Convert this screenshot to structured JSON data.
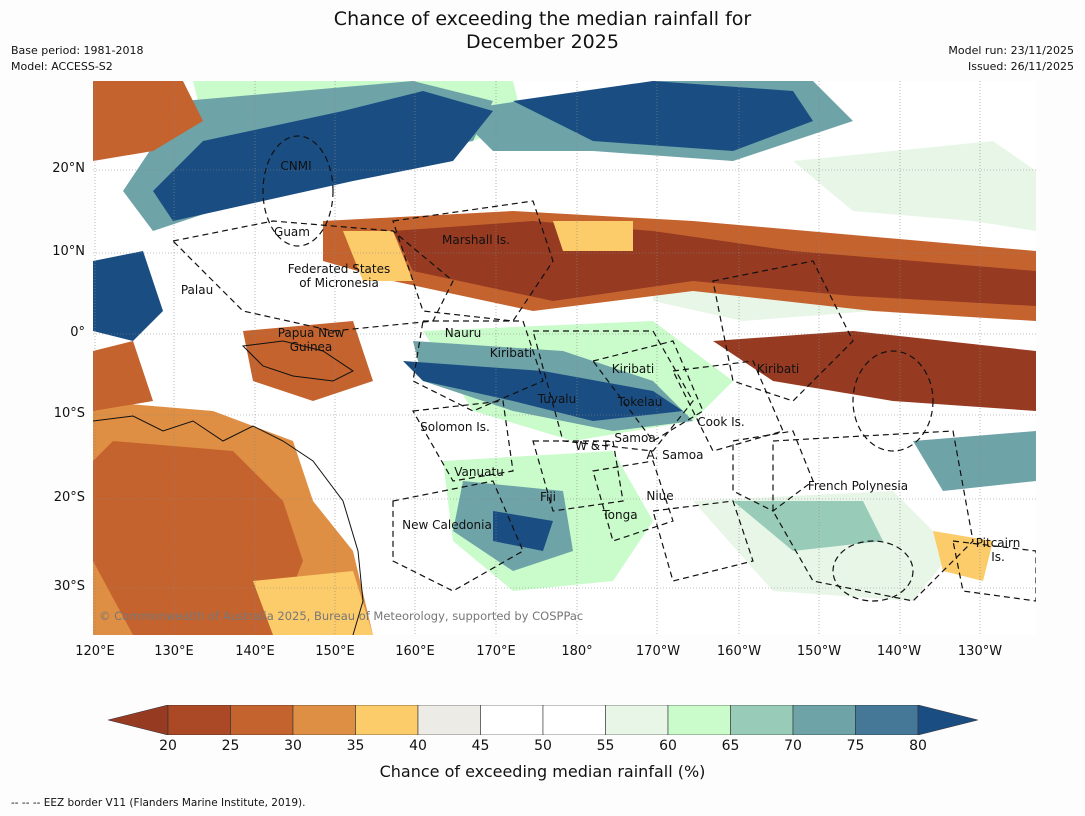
{
  "title": {
    "line1": "Chance of exceeding the median rainfall for",
    "line2": "December 2025"
  },
  "meta_left": {
    "base_period": "Base period: 1981-2018",
    "model": "Model: ACCESS-S2"
  },
  "meta_right": {
    "model_run": "Model run: 23/11/2025",
    "issued": "Issued: 26/11/2025"
  },
  "latitude_labels": [
    "20°N",
    "10°N",
    "0°",
    "10°S",
    "20°S",
    "30°S"
  ],
  "longitude_labels": [
    "120°E",
    "130°E",
    "140°E",
    "150°E",
    "160°E",
    "170°E",
    "180°",
    "170°W",
    "160°W",
    "150°W",
    "140°W",
    "130°W"
  ],
  "places": {
    "cnmi": "CNMI",
    "guam": "Guam",
    "marshall": "Marshall Is.",
    "fsm1": "Federated States",
    "fsm2": "of Micronesia",
    "palau": "Palau",
    "png1": "Papua New",
    "png2": "Guinea",
    "nauru": "Nauru",
    "kiribati_w": "Kiribati",
    "kiribati_c": "Kiribati",
    "kiribati_e": "Kiribati",
    "tuvalu": "Tuvalu",
    "tokelau": "Tokelau",
    "solomon": "Solomon Is.",
    "cook": "Cook Is.",
    "wf": "W & F",
    "samoa": "Samoa",
    "asamoa": "A. Samoa",
    "vanuatu": "Vanuatu",
    "fiji": "Fiji",
    "niue": "Niue",
    "tonga": "Tonga",
    "newcal": "New Caledonia",
    "frpoly": "French Polynesia",
    "pitcairn1": "Pitcairn",
    "pitcairn2": "Is."
  },
  "copyright": "© Commonwealth of Australia 2025, Bureau of Meteorology, supported by COSPPac",
  "colorbar": {
    "tick_labels": [
      "20",
      "25",
      "30",
      "35",
      "40",
      "45",
      "50",
      "55",
      "60",
      "65",
      "70",
      "75",
      "80"
    ],
    "colors": [
      "#ab4826",
      "#c5632f",
      "#df8f43",
      "#fccb6a",
      "#edebe6",
      "#ffffff",
      "#ffffff",
      "#e8f6e8",
      "#c9fbcb",
      "#99ccb8",
      "#6ea3a8",
      "#457896"
    ],
    "under_color": "#963a22",
    "over_color": "#1a4e83",
    "title": "Chance of exceeding median rainfall (%)"
  },
  "footnote": "--  --  -- EEZ border V11 (Flanders Marine Institute, 2019)."
}
